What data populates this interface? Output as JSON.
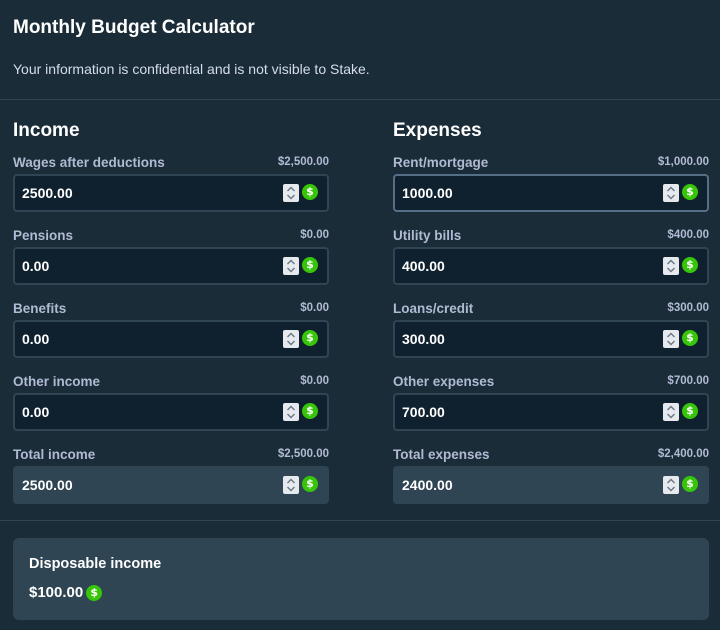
{
  "header": {
    "title": "Monthly Budget Calculator",
    "subtitle": "Your information is confidential and is not visible to Stake."
  },
  "income": {
    "heading": "Income",
    "fields": [
      {
        "label": "Wages after deductions",
        "amount": "$2,500.00",
        "value": "2500.00"
      },
      {
        "label": "Pensions",
        "amount": "$0.00",
        "value": "0.00"
      },
      {
        "label": "Benefits",
        "amount": "$0.00",
        "value": "0.00"
      },
      {
        "label": "Other income",
        "amount": "$0.00",
        "value": "0.00"
      }
    ],
    "total": {
      "label": "Total income",
      "amount": "$2,500.00",
      "value": "2500.00"
    }
  },
  "expenses": {
    "heading": "Expenses",
    "fields": [
      {
        "label": "Rent/mortgage",
        "amount": "$1,000.00",
        "value": "1000.00"
      },
      {
        "label": "Utility bills",
        "amount": "$400.00",
        "value": "400.00"
      },
      {
        "label": "Loans/credit",
        "amount": "$300.00",
        "value": "300.00"
      },
      {
        "label": "Other expenses",
        "amount": "$700.00",
        "value": "700.00"
      }
    ],
    "total": {
      "label": "Total expenses",
      "amount": "$2,400.00",
      "value": "2400.00"
    }
  },
  "disposable": {
    "label": "Disposable income",
    "value": "$100.00"
  },
  "icons": {
    "currency": "dollar-coin-icon",
    "spinner": "number-spinner-icon",
    "currency_symbol": "$"
  },
  "colors": {
    "background": "#1a2c38",
    "input_background": "#0f212e",
    "panel": "#2f4553",
    "label": "#b1bad3",
    "coin_green": "#37c50a",
    "focused_border": "#557086"
  }
}
